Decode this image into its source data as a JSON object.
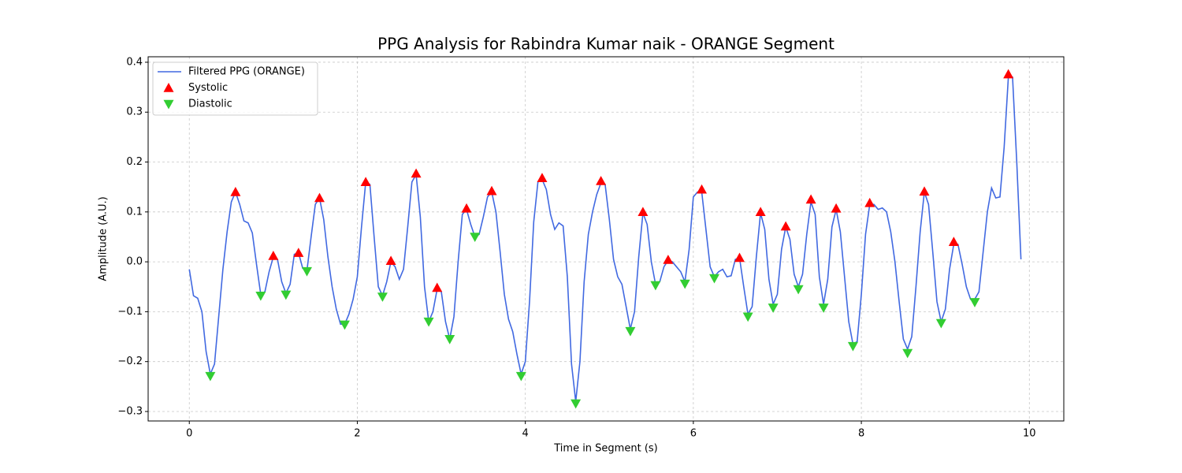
{
  "chart_data": {
    "type": "line",
    "title": "PPG Analysis for Rabindra Kumar naik - ORANGE Segment",
    "xlabel": "Time in Segment (s)",
    "ylabel": "Amplitude (A.U.)",
    "xlim": [
      -0.49,
      10.41
    ],
    "ylim": [
      -0.319,
      0.411
    ],
    "xticks": [
      0,
      2,
      4,
      6,
      8,
      10
    ],
    "yticks": [
      {
        "value": -0.3,
        "label": "−0.3"
      },
      {
        "value": -0.2,
        "label": "−0.2"
      },
      {
        "value": -0.1,
        "label": "−0.1"
      },
      {
        "value": 0,
        "label": "0.0"
      },
      0.1,
      0.2,
      0.3,
      0.4
    ],
    "grid": true,
    "legend": "upper left",
    "series": [
      {
        "name": "Filtered PPG (ORANGE)",
        "type": "line",
        "color": "#4169e1",
        "x": [
          0,
          0.05,
          0.1,
          0.15,
          0.2,
          0.25,
          0.3,
          0.35,
          0.4,
          0.45,
          0.5,
          0.55,
          0.6,
          0.65,
          0.7,
          0.75,
          0.8,
          0.85,
          0.9,
          0.95,
          1.0,
          1.05,
          1.1,
          1.15,
          1.2,
          1.25,
          1.3,
          1.35,
          1.4,
          1.45,
          1.5,
          1.55,
          1.6,
          1.65,
          1.7,
          1.75,
          1.8,
          1.85,
          1.9,
          1.95,
          2.0,
          2.05,
          2.1,
          2.15,
          2.2,
          2.25,
          2.3,
          2.35,
          2.4,
          2.45,
          2.5,
          2.55,
          2.6,
          2.65,
          2.7,
          2.75,
          2.8,
          2.85,
          2.9,
          2.95,
          3.0,
          3.05,
          3.1,
          3.15,
          3.2,
          3.25,
          3.3,
          3.35,
          3.4,
          3.45,
          3.5,
          3.55,
          3.6,
          3.65,
          3.7,
          3.75,
          3.8,
          3.85,
          3.9,
          3.95,
          4.0,
          4.05,
          4.1,
          4.15,
          4.2,
          4.25,
          4.3,
          4.35,
          4.4,
          4.45,
          4.5,
          4.55,
          4.6,
          4.65,
          4.7,
          4.75,
          4.8,
          4.85,
          4.9,
          4.95,
          5.0,
          5.05,
          5.1,
          5.15,
          5.2,
          5.25,
          5.3,
          5.35,
          5.4,
          5.45,
          5.5,
          5.55,
          5.6,
          5.65,
          5.7,
          5.75,
          5.8,
          5.85,
          5.9,
          5.95,
          6.0,
          6.05,
          6.1,
          6.15,
          6.2,
          6.25,
          6.3,
          6.35,
          6.4,
          6.45,
          6.5,
          6.55,
          6.6,
          6.65,
          6.7,
          6.75,
          6.8,
          6.85,
          6.9,
          6.95,
          7.0,
          7.05,
          7.1,
          7.15,
          7.2,
          7.25,
          7.3,
          7.35,
          7.4,
          7.45,
          7.5,
          7.55,
          7.6,
          7.65,
          7.7,
          7.75,
          7.8,
          7.85,
          7.9,
          7.95,
          8.0,
          8.05,
          8.1,
          8.15,
          8.2,
          8.25,
          8.3,
          8.35,
          8.4,
          8.45,
          8.5,
          8.55,
          8.6,
          8.65,
          8.7,
          8.75,
          8.8,
          8.85,
          8.9,
          8.95,
          9.0,
          9.05,
          9.1,
          9.15,
          9.2,
          9.25,
          9.3,
          9.35,
          9.4,
          9.45,
          9.5,
          9.55,
          9.6,
          9.65,
          9.7,
          9.75,
          9.8,
          9.85,
          9.9
        ],
        "values": [
          -0.015,
          -0.068,
          -0.073,
          -0.1,
          -0.18,
          -0.225,
          -0.205,
          -0.11,
          -0.015,
          0.06,
          0.12,
          0.14,
          0.115,
          0.082,
          0.078,
          0.058,
          -0.005,
          -0.065,
          -0.06,
          -0.02,
          0.01,
          0.005,
          -0.04,
          -0.063,
          -0.045,
          0.015,
          0.018,
          -0.013,
          -0.018,
          0.05,
          0.115,
          0.128,
          0.085,
          0.01,
          -0.05,
          -0.095,
          -0.125,
          -0.125,
          -0.105,
          -0.075,
          -0.03,
          0.07,
          0.16,
          0.155,
          0.05,
          -0.05,
          -0.068,
          -0.04,
          0.0,
          -0.01,
          -0.035,
          -0.015,
          0.07,
          0.16,
          0.175,
          0.09,
          -0.05,
          -0.12,
          -0.1,
          -0.055,
          -0.06,
          -0.12,
          -0.155,
          -0.11,
          0.0,
          0.095,
          0.105,
          0.075,
          0.05,
          0.055,
          0.09,
          0.13,
          0.14,
          0.1,
          0.02,
          -0.065,
          -0.115,
          -0.14,
          -0.185,
          -0.225,
          -0.2,
          -0.08,
          0.08,
          0.16,
          0.165,
          0.145,
          0.095,
          0.065,
          0.078,
          0.072,
          -0.03,
          -0.205,
          -0.28,
          -0.2,
          -0.04,
          0.055,
          0.1,
          0.135,
          0.158,
          0.155,
          0.085,
          0.005,
          -0.03,
          -0.045,
          -0.09,
          -0.135,
          -0.1,
          0.01,
          0.098,
          0.075,
          0.0,
          -0.045,
          -0.04,
          -0.01,
          0.003,
          0.0,
          -0.01,
          -0.02,
          -0.04,
          0.025,
          0.13,
          0.14,
          0.14,
          0.065,
          -0.01,
          -0.03,
          -0.02,
          -0.015,
          -0.03,
          -0.028,
          0.005,
          0.008,
          -0.05,
          -0.105,
          -0.09,
          0.01,
          0.098,
          0.065,
          -0.035,
          -0.085,
          -0.065,
          0.025,
          0.07,
          0.045,
          -0.025,
          -0.05,
          -0.025,
          0.055,
          0.12,
          0.095,
          -0.03,
          -0.085,
          -0.035,
          0.07,
          0.105,
          0.06,
          -0.03,
          -0.12,
          -0.165,
          -0.16,
          -0.065,
          0.055,
          0.115,
          0.115,
          0.105,
          0.108,
          0.1,
          0.06,
          0.0,
          -0.08,
          -0.155,
          -0.175,
          -0.15,
          -0.05,
          0.06,
          0.14,
          0.115,
          0.02,
          -0.08,
          -0.12,
          -0.095,
          -0.015,
          0.035,
          0.035,
          -0.005,
          -0.05,
          -0.075,
          -0.075,
          -0.06,
          0.02,
          0.1,
          0.148,
          0.128,
          0.13,
          0.23,
          0.37,
          0.37,
          0.2,
          0.005
        ]
      },
      {
        "name": "Systolic",
        "type": "scatter",
        "marker": "up",
        "color": "#ff0000",
        "x": [
          0.55,
          1.0,
          1.3,
          1.55,
          2.1,
          2.4,
          2.7,
          2.95,
          3.3,
          3.6,
          4.2,
          4.9,
          5.4,
          5.7,
          6.1,
          6.55,
          6.8,
          7.1,
          7.4,
          7.7,
          8.1,
          8.75,
          9.1,
          9.75
        ],
        "values": [
          0.14,
          0.012,
          0.018,
          0.128,
          0.16,
          0.002,
          0.177,
          -0.052,
          0.107,
          0.142,
          0.168,
          0.162,
          0.1,
          0.004,
          0.145,
          0.008,
          0.1,
          0.071,
          0.125,
          0.107,
          0.118,
          0.141,
          0.04,
          0.376
        ]
      },
      {
        "name": "Diastolic",
        "type": "scatter",
        "marker": "down",
        "color": "#32cd32",
        "x": [
          0.25,
          0.85,
          1.15,
          1.4,
          1.85,
          2.3,
          2.85,
          3.1,
          3.4,
          3.95,
          4.6,
          5.25,
          5.55,
          5.9,
          6.25,
          6.65,
          6.95,
          7.25,
          7.55,
          7.9,
          8.55,
          8.95,
          9.35
        ],
        "values": [
          -0.229,
          -0.068,
          -0.066,
          -0.019,
          -0.126,
          -0.07,
          -0.12,
          -0.155,
          0.05,
          -0.229,
          -0.284,
          -0.139,
          -0.047,
          -0.044,
          -0.033,
          -0.11,
          -0.092,
          -0.055,
          -0.092,
          -0.169,
          -0.183,
          -0.123,
          -0.081
        ]
      }
    ]
  }
}
